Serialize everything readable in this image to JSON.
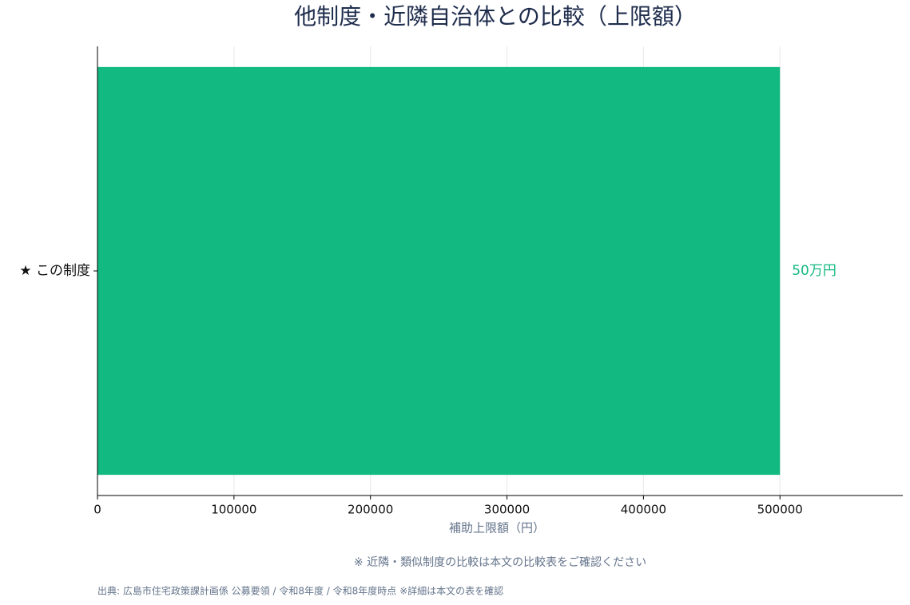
{
  "chart_data": {
    "type": "barh",
    "title": "他制度・近隣自治体との比較（上限額）",
    "categories": [
      "★ この制度"
    ],
    "values": [
      500000
    ],
    "value_labels": [
      "50万円"
    ],
    "color": "#12b981",
    "xlim": [
      0,
      590000
    ],
    "xticks": [
      0,
      100000,
      200000,
      300000,
      400000,
      500000
    ],
    "xlabel": "補助上限額（円）",
    "grid": true,
    "annotations": [
      "※ 近隣・類似制度の比較は本文の比較表をご確認ください",
      "出典: 広島市住宅政策課計画係 公募要領 / 令和8年度 / 令和8年度時点 ※詳細は本文の表を確認"
    ]
  }
}
